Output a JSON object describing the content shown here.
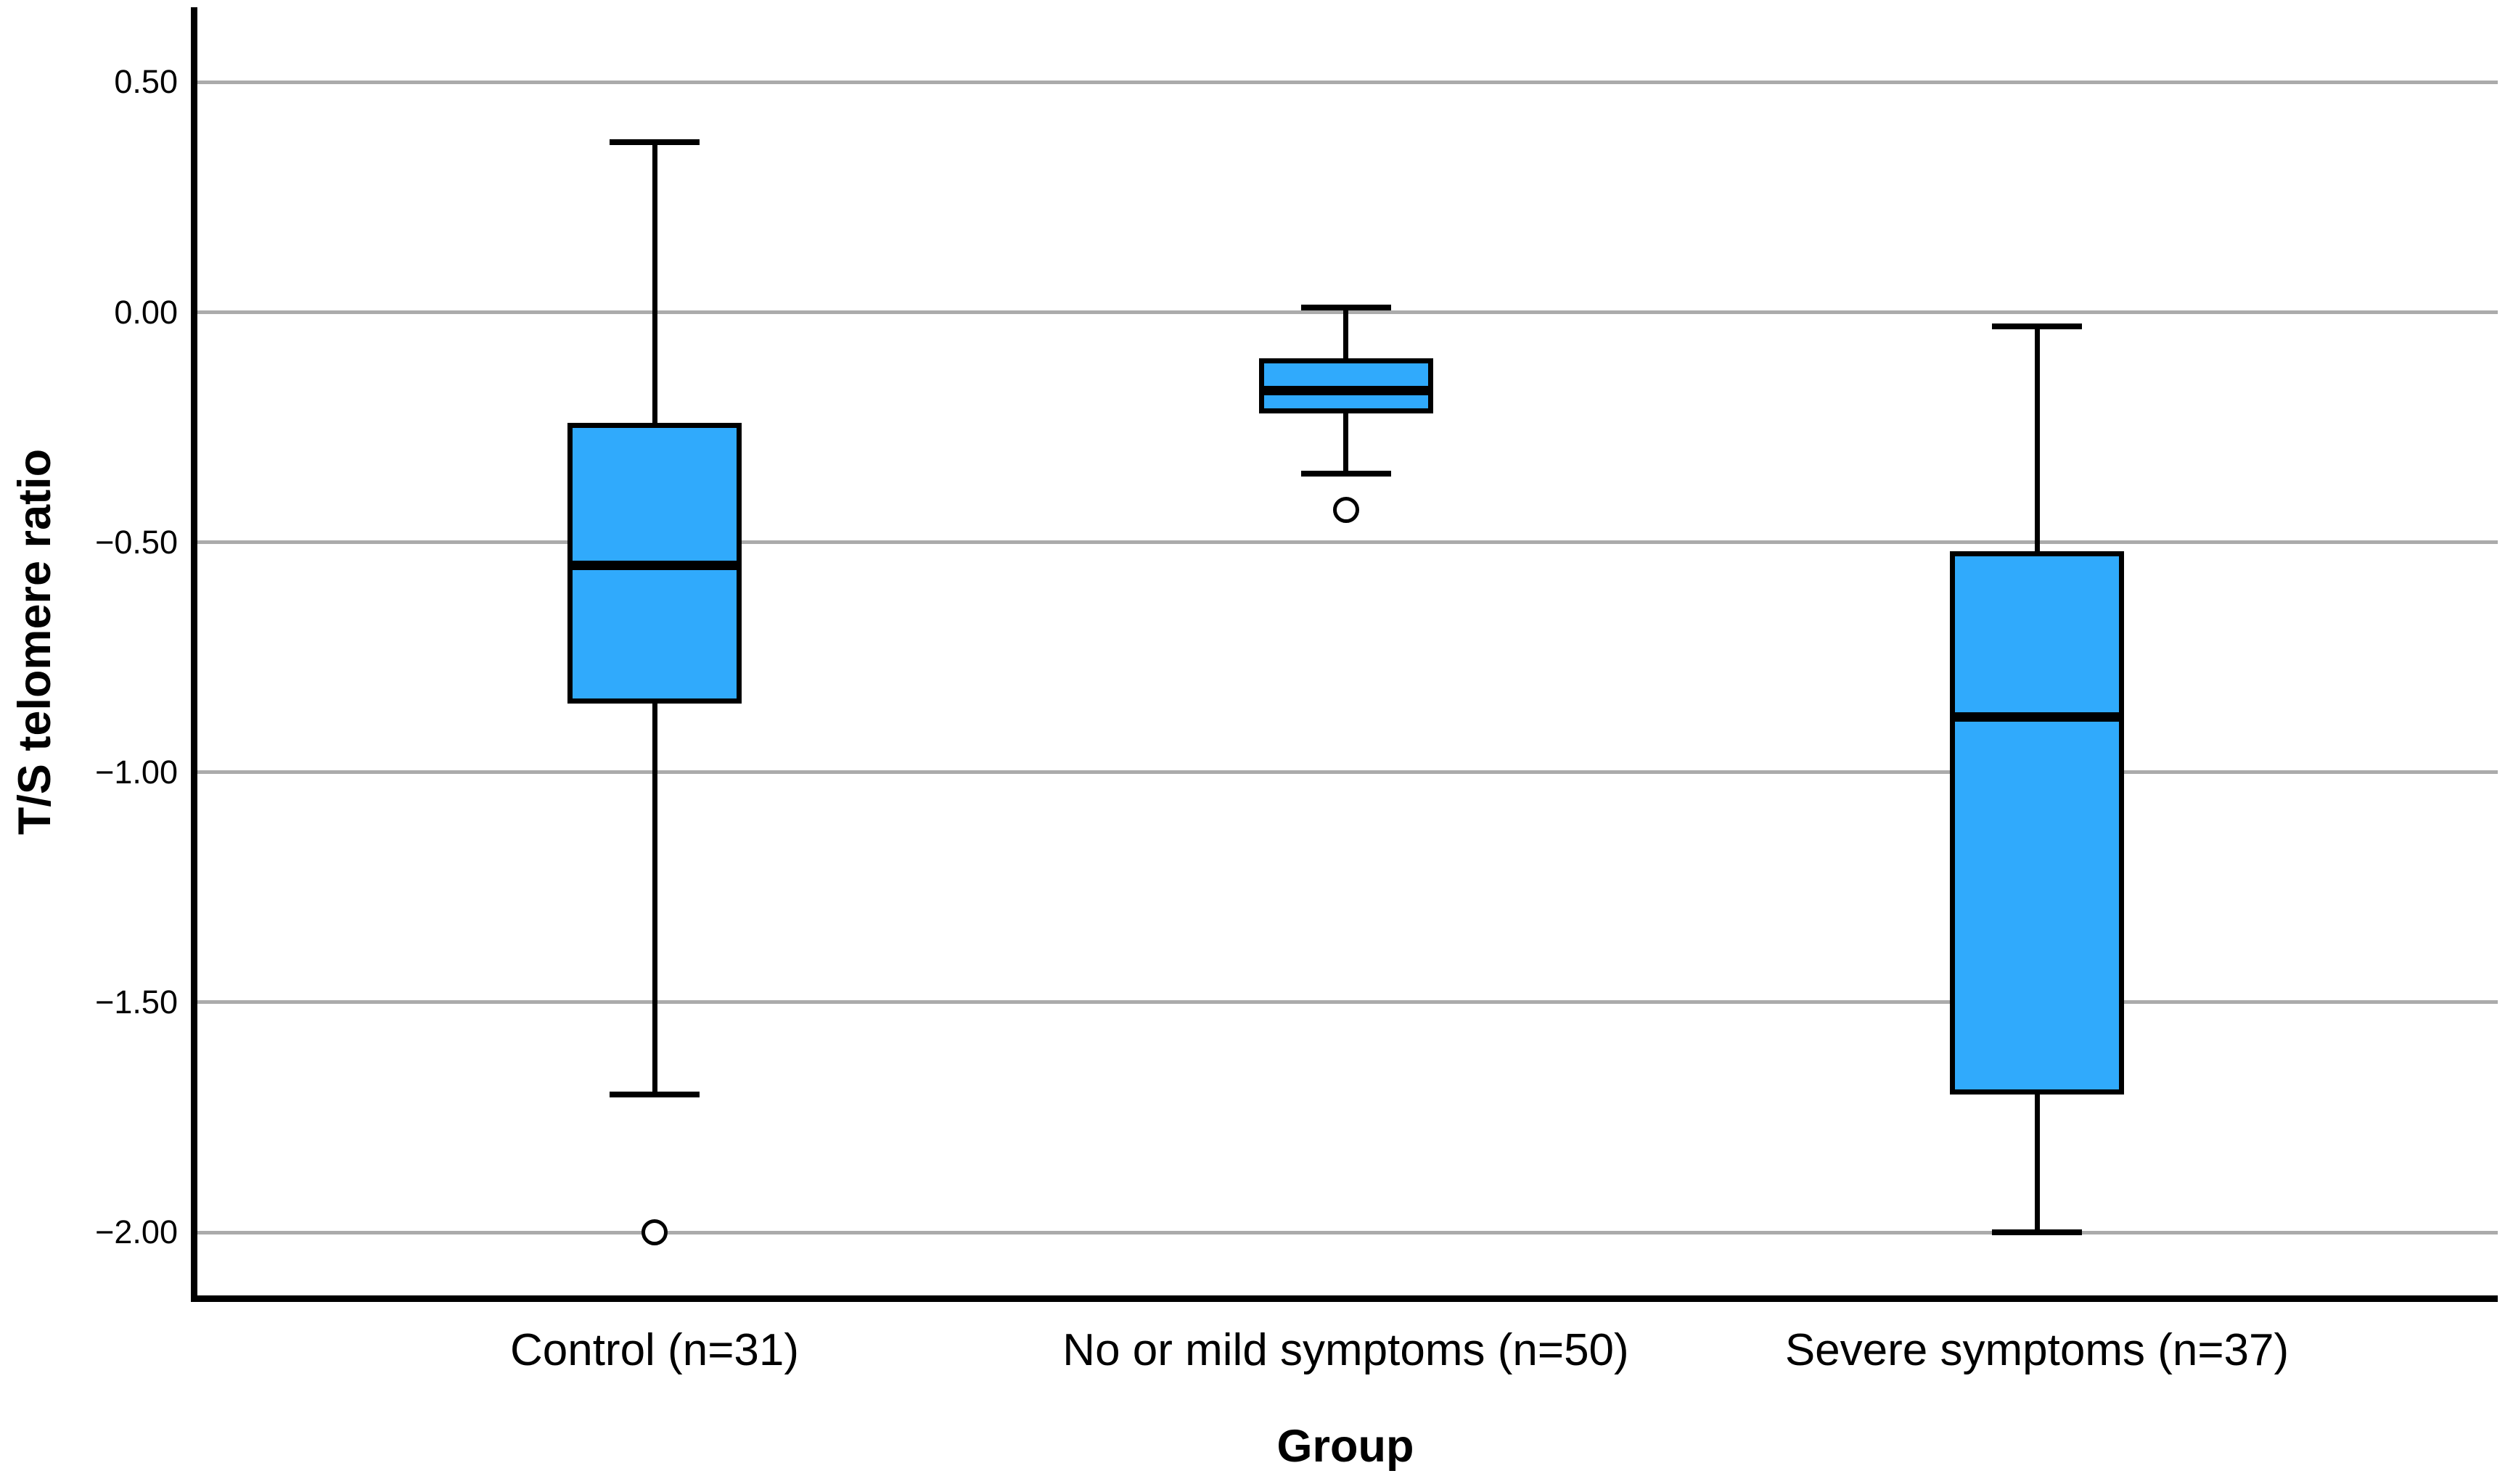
{
  "chart_data": {
    "type": "boxplot",
    "title": "",
    "xlabel": "Group",
    "ylabel": "T/S telomere ratio",
    "ylim": [
      -2.137,
      0.663
    ],
    "y_ticks": [
      0.5,
      0.0,
      -0.5,
      -1.0,
      -1.5,
      -2.0
    ],
    "y_tick_labels": [
      "0.50",
      "0.00",
      "−0.50",
      "−1.00",
      "−1.50",
      "−2.00"
    ],
    "grid": "horizontal-gridlines-on",
    "legend": "none",
    "categories": [
      "Control (n=31)",
      "No or mild symptoms (n=50)",
      "Severe symptoms (n=37)"
    ],
    "groups": [
      {
        "label": "Control (n=31)",
        "n": 31,
        "whisker_low": -1.7,
        "q1": -0.85,
        "median": -0.55,
        "q3": -0.24,
        "whisker_high": 0.37,
        "outliers": [
          -2.0
        ]
      },
      {
        "label": "No or mild symptoms (n=50)",
        "n": 50,
        "whisker_low": -0.35,
        "q1": -0.22,
        "median": -0.17,
        "q3": -0.1,
        "whisker_high": 0.01,
        "outliers": [
          -0.43
        ]
      },
      {
        "label": "Severe symptoms (n=37)",
        "n": 37,
        "whisker_low": -2.0,
        "q1": -1.7,
        "median": -0.88,
        "q3": -0.52,
        "whisker_high": -0.03,
        "outliers": []
      }
    ],
    "colors": {
      "box_fill": "#30AAFC",
      "box_border": "#000000",
      "median": "#000000",
      "whisker": "#000000",
      "gridline": "#ABABAB",
      "axis": "#000000",
      "outlier_fill": "#FFFFFF",
      "background": "#FFFFFF",
      "text": "#000000"
    }
  }
}
